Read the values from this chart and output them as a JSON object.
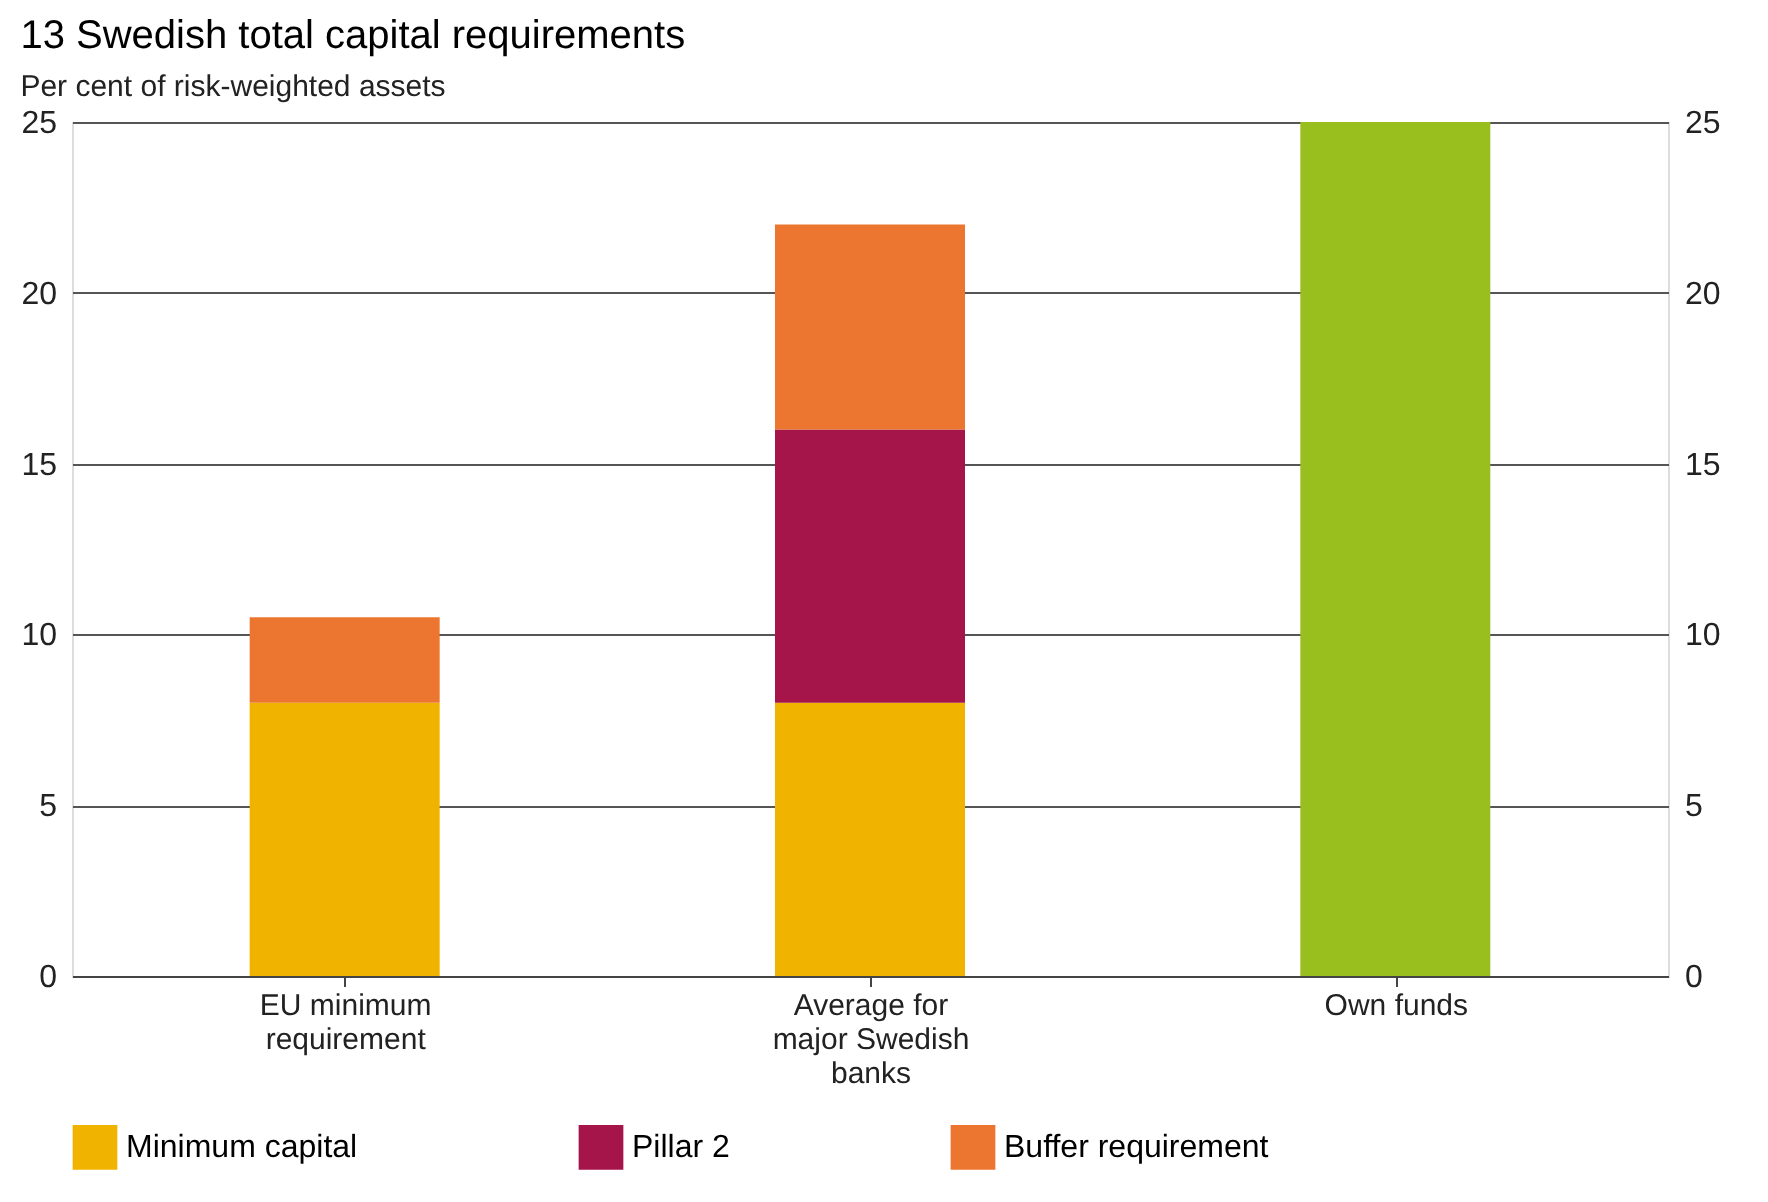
{
  "chart_data": {
    "type": "bar",
    "title": "13 Swedish total capital requirements",
    "ylabel": "Per cent of risk-weighted assets",
    "categories": [
      "EU minimum requirement",
      "Average for major Swedish banks",
      "Own funds"
    ],
    "stacked": true,
    "series": [
      {
        "name": "Minimum capital",
        "color": "#f0b400",
        "values": [
          8,
          8,
          null
        ]
      },
      {
        "name": "Pillar 2",
        "color": "#a6154a",
        "values": [
          null,
          8,
          null
        ]
      },
      {
        "name": "Buffer requirement",
        "color": "#ec7630",
        "values": [
          2.5,
          6,
          null
        ]
      },
      {
        "color": "#99bf1f",
        "values": [
          null,
          null,
          25
        ]
      }
    ],
    "ylim": [
      0,
      25
    ],
    "yticks": [
      0,
      5,
      10,
      15,
      20,
      25
    ],
    "y2lim": [
      0,
      25
    ],
    "y2ticks": [
      0,
      5,
      10,
      15,
      20,
      25
    ],
    "grid": "y",
    "legend": "bottom"
  }
}
